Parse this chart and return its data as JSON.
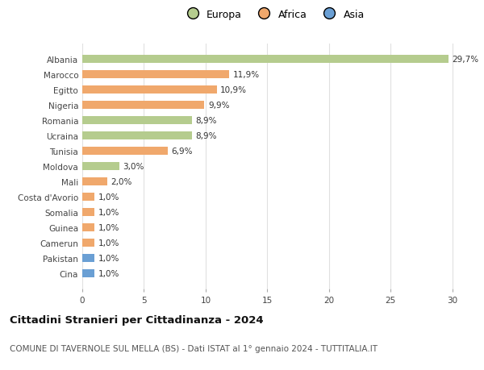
{
  "countries": [
    "Albania",
    "Marocco",
    "Egitto",
    "Nigeria",
    "Romania",
    "Ucraina",
    "Tunisia",
    "Moldova",
    "Mali",
    "Costa d'Avorio",
    "Somalia",
    "Guinea",
    "Camerun",
    "Pakistan",
    "Cina"
  ],
  "values": [
    29.7,
    11.9,
    10.9,
    9.9,
    8.9,
    8.9,
    6.9,
    3.0,
    2.0,
    1.0,
    1.0,
    1.0,
    1.0,
    1.0,
    1.0
  ],
  "labels": [
    "29,7%",
    "11,9%",
    "10,9%",
    "9,9%",
    "8,9%",
    "8,9%",
    "6,9%",
    "3,0%",
    "2,0%",
    "1,0%",
    "1,0%",
    "1,0%",
    "1,0%",
    "1,0%",
    "1,0%"
  ],
  "continents": [
    "Europa",
    "Africa",
    "Africa",
    "Africa",
    "Europa",
    "Europa",
    "Africa",
    "Europa",
    "Africa",
    "Africa",
    "Africa",
    "Africa",
    "Africa",
    "Asia",
    "Asia"
  ],
  "colors": {
    "Europa": "#b5cc8e",
    "Africa": "#f0a86c",
    "Asia": "#6a9fd4"
  },
  "legend": [
    "Europa",
    "Africa",
    "Asia"
  ],
  "legend_colors": [
    "#b5cc8e",
    "#f0a86c",
    "#6a9fd4"
  ],
  "title": "Cittadini Stranieri per Cittadinanza - 2024",
  "subtitle": "COMUNE DI TAVERNOLE SUL MELLA (BS) - Dati ISTAT al 1° gennaio 2024 - TUTTITALIA.IT",
  "xlim": [
    0,
    31
  ],
  "xticks": [
    0,
    5,
    10,
    15,
    20,
    25,
    30
  ],
  "bg_color": "#ffffff",
  "grid_color": "#e0e0e0",
  "bar_height": 0.55,
  "label_fontsize": 7.5,
  "tick_fontsize": 7.5,
  "title_fontsize": 9.5,
  "subtitle_fontsize": 7.5
}
